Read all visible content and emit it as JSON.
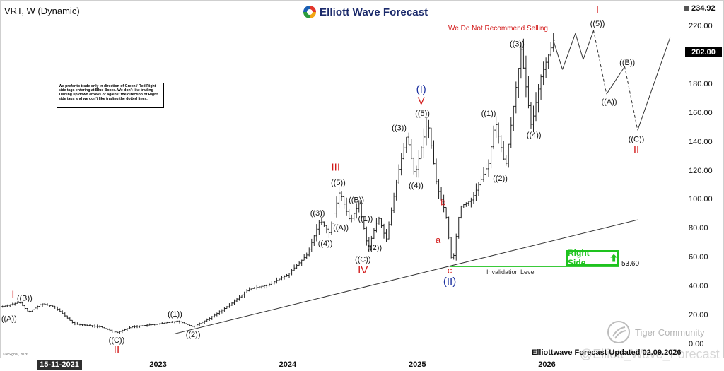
{
  "header": {
    "symbol": "VRT, W (Dynamic)",
    "brand": "Elliott Wave Forecast",
    "warning": "We Do Not Recommend Selling"
  },
  "note": "We prefer to trade only in direction of Green / Red Right side tags entering at Blue Boxes. We don't like trading Turning up/down arrows or against the direction of Right side tags and we don't like trading the dotted lines.",
  "price_axis": {
    "top_value": "234.92",
    "current_value": "202.00",
    "ticks": [
      "220.00",
      "200.00",
      "180.00",
      "160.00",
      "140.00",
      "120.00",
      "100.00",
      "80.00",
      "60.00",
      "40.00",
      "20.00",
      "0.00"
    ]
  },
  "time_axis": {
    "badge": "15-11-2021",
    "ticks": [
      "2023",
      "2024",
      "2025",
      "2026"
    ]
  },
  "footer": {
    "updated": "Elliottwave Forecast Updated 02.09.2026",
    "source": "© eSignal, 2026",
    "watermark": "Tiger Community",
    "handle": "@Elliott_Wave_Forecast"
  },
  "right_side": {
    "label": "Right Side",
    "invalidation_value": "53.60",
    "invalidation_label": "Invalidation Level"
  },
  "colors": {
    "red": "#d21919",
    "blue": "#1a2fa0",
    "green": "#1ec31e",
    "bars": "#222222"
  },
  "chart_data": {
    "type": "line",
    "title": "VRT, W (Dynamic)",
    "xlabel": "",
    "ylabel": "",
    "ylim": [
      0,
      235
    ],
    "x_ticks": [
      "2023",
      "2024",
      "2025",
      "2026"
    ],
    "grid": false,
    "price_anchors": [
      {
        "x": 2021.8,
        "y": 26
      },
      {
        "x": 2021.93,
        "y": 29
      },
      {
        "x": 2022.0,
        "y": 22
      },
      {
        "x": 2022.1,
        "y": 28
      },
      {
        "x": 2022.2,
        "y": 26
      },
      {
        "x": 2022.35,
        "y": 14
      },
      {
        "x": 2022.55,
        "y": 12
      },
      {
        "x": 2022.68,
        "y": 8
      },
      {
        "x": 2022.8,
        "y": 12
      },
      {
        "x": 2023.0,
        "y": 14
      },
      {
        "x": 2023.15,
        "y": 16
      },
      {
        "x": 2023.27,
        "y": 12
      },
      {
        "x": 2023.4,
        "y": 18
      },
      {
        "x": 2023.55,
        "y": 27
      },
      {
        "x": 2023.7,
        "y": 38
      },
      {
        "x": 2023.85,
        "y": 41
      },
      {
        "x": 2024.0,
        "y": 48
      },
      {
        "x": 2024.15,
        "y": 62
      },
      {
        "x": 2024.25,
        "y": 86
      },
      {
        "x": 2024.32,
        "y": 77
      },
      {
        "x": 2024.4,
        "y": 106
      },
      {
        "x": 2024.48,
        "y": 85
      },
      {
        "x": 2024.55,
        "y": 97
      },
      {
        "x": 2024.62,
        "y": 66
      },
      {
        "x": 2024.7,
        "y": 88
      },
      {
        "x": 2024.76,
        "y": 72
      },
      {
        "x": 2024.85,
        "y": 118
      },
      {
        "x": 2024.92,
        "y": 145
      },
      {
        "x": 2024.98,
        "y": 116
      },
      {
        "x": 2025.08,
        "y": 155
      },
      {
        "x": 2025.15,
        "y": 110
      },
      {
        "x": 2025.22,
        "y": 90
      },
      {
        "x": 2025.27,
        "y": 54
      },
      {
        "x": 2025.33,
        "y": 95
      },
      {
        "x": 2025.42,
        "y": 100
      },
      {
        "x": 2025.55,
        "y": 125
      },
      {
        "x": 2025.6,
        "y": 155
      },
      {
        "x": 2025.68,
        "y": 122
      },
      {
        "x": 2025.8,
        "y": 204
      },
      {
        "x": 2025.88,
        "y": 150
      },
      {
        "x": 2025.95,
        "y": 184
      },
      {
        "x": 2026.05,
        "y": 210
      }
    ],
    "projection": [
      {
        "x": 2026.05,
        "y": 210
      },
      {
        "x": 2026.12,
        "y": 190
      },
      {
        "x": 2026.22,
        "y": 215
      },
      {
        "x": 2026.28,
        "y": 197
      },
      {
        "x": 2026.36,
        "y": 217
      },
      {
        "x": 2026.46,
        "y": 173
      },
      {
        "x": 2026.6,
        "y": 192
      },
      {
        "x": 2026.7,
        "y": 148
      },
      {
        "x": 2026.95,
        "y": 212
      }
    ],
    "trendline": [
      {
        "x": 2023.12,
        "y": 7
      },
      {
        "x": 2026.7,
        "y": 86
      }
    ],
    "invalidation_level": 53.6,
    "wave_labels": [
      {
        "text": "I",
        "x": 2021.88,
        "y": 32,
        "color": "red",
        "size": 15
      },
      {
        "text": "((B))",
        "x": 2021.97,
        "y": 30
      },
      {
        "text": "((A))",
        "x": 2021.85,
        "y": 16
      },
      {
        "text": "((C))",
        "x": 2022.68,
        "y": 1
      },
      {
        "text": "II",
        "x": 2022.68,
        "y": -6,
        "color": "red",
        "size": 15
      },
      {
        "text": "((1))",
        "x": 2023.13,
        "y": 19
      },
      {
        "text": "((2))",
        "x": 2023.27,
        "y": 5
      },
      {
        "text": "((3))",
        "x": 2024.23,
        "y": 89
      },
      {
        "text": "((4))",
        "x": 2024.29,
        "y": 68
      },
      {
        "text": "((5))",
        "x": 2024.39,
        "y": 110
      },
      {
        "text": "III",
        "x": 2024.37,
        "y": 120,
        "color": "red",
        "size": 15
      },
      {
        "text": "((A))",
        "x": 2024.41,
        "y": 79
      },
      {
        "text": "((B))",
        "x": 2024.53,
        "y": 98
      },
      {
        "text": "((1))",
        "x": 2024.6,
        "y": 85
      },
      {
        "text": "((2))",
        "x": 2024.67,
        "y": 65
      },
      {
        "text": "((C))",
        "x": 2024.58,
        "y": 57
      },
      {
        "text": "IV",
        "x": 2024.58,
        "y": 49,
        "color": "red",
        "size": 15
      },
      {
        "text": "((3))",
        "x": 2024.86,
        "y": 148
      },
      {
        "text": "((4))",
        "x": 2024.99,
        "y": 108
      },
      {
        "text": "((5))",
        "x": 2025.04,
        "y": 158
      },
      {
        "text": "V",
        "x": 2025.03,
        "y": 166,
        "color": "red",
        "size": 15
      },
      {
        "text": "(I)",
        "x": 2025.03,
        "y": 174,
        "color": "blue",
        "size": 15
      },
      {
        "text": "b",
        "x": 2025.2,
        "y": 96,
        "color": "red",
        "size": 13
      },
      {
        "text": "a",
        "x": 2025.16,
        "y": 70,
        "color": "red",
        "size": 13
      },
      {
        "text": "c",
        "x": 2025.25,
        "y": 49,
        "color": "red",
        "size": 13
      },
      {
        "text": "(II)",
        "x": 2025.25,
        "y": 41,
        "color": "blue",
        "size": 15
      },
      {
        "text": "((1))",
        "x": 2025.55,
        "y": 158
      },
      {
        "text": "((2))",
        "x": 2025.64,
        "y": 113
      },
      {
        "text": "((3))",
        "x": 2025.77,
        "y": 206
      },
      {
        "text": "((4))",
        "x": 2025.9,
        "y": 143
      },
      {
        "text": "((5))",
        "x": 2026.39,
        "y": 220
      },
      {
        "text": "I",
        "x": 2026.39,
        "y": 229,
        "color": "red",
        "size": 15
      },
      {
        "text": "((B))",
        "x": 2026.62,
        "y": 193
      },
      {
        "text": "((A))",
        "x": 2026.48,
        "y": 166
      },
      {
        "text": "((C))",
        "x": 2026.69,
        "y": 140
      },
      {
        "text": "II",
        "x": 2026.69,
        "y": 132,
        "color": "red",
        "size": 15
      }
    ]
  }
}
